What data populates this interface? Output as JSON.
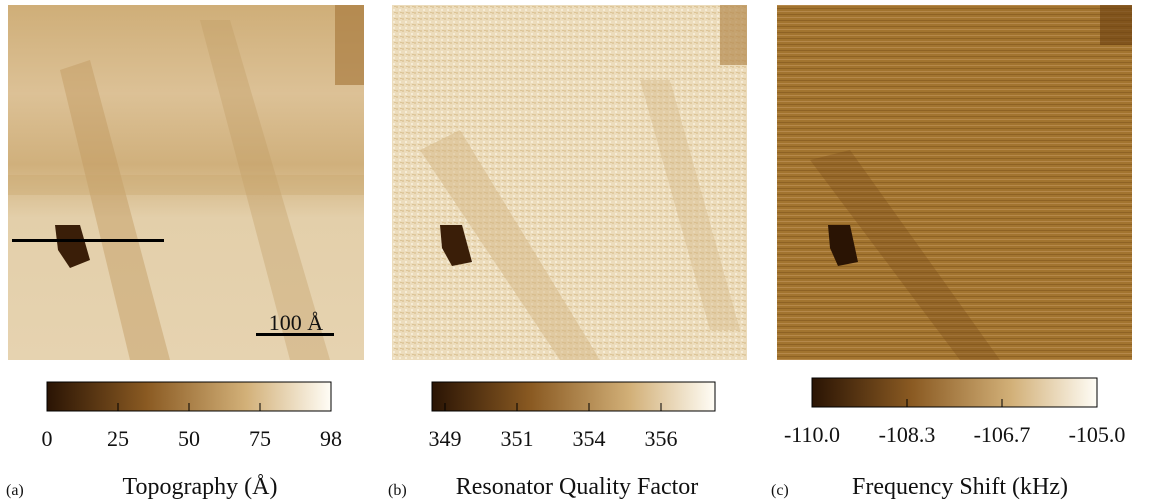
{
  "panels": [
    {
      "label": "(a)",
      "title": "Topography (Å)",
      "scale_bar": "100 Å",
      "colorbar_ticks": [
        "0",
        "25",
        "50",
        "75",
        "98"
      ]
    },
    {
      "label": "(b)",
      "title": "Resonator Quality Factor",
      "colorbar_ticks": [
        "349",
        "351",
        "354",
        "356"
      ]
    },
    {
      "label": "(c)",
      "title": "Frequency Shift (kHz)",
      "colorbar_ticks": [
        "-110.0",
        "-108.3",
        "-106.7",
        "-105.0"
      ]
    }
  ]
}
